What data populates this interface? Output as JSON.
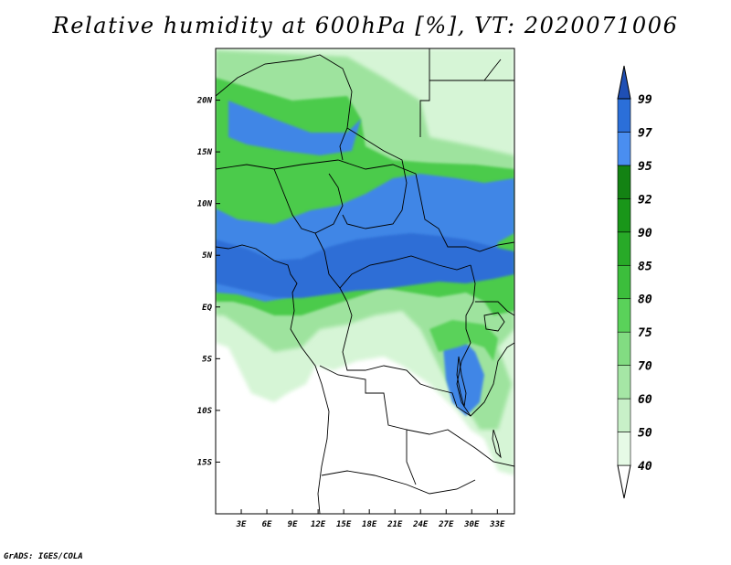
{
  "title": "Relative humidity at 600hPa [%], VT: 2020071006",
  "credit": "GrADS: IGES/COLA",
  "map": {
    "lon_range_deg": [
      0,
      35
    ],
    "lat_range_deg": [
      -20,
      25
    ],
    "lat_ticks": [
      {
        "value": 20,
        "label": "20N"
      },
      {
        "value": 15,
        "label": "15N"
      },
      {
        "value": 10,
        "label": "10N"
      },
      {
        "value": 5,
        "label": "5N"
      },
      {
        "value": 0,
        "label": "EQ"
      },
      {
        "value": -5,
        "label": "5S"
      },
      {
        "value": -10,
        "label": "10S"
      },
      {
        "value": -15,
        "label": "15S"
      }
    ],
    "lon_ticks": [
      {
        "value": 3,
        "label": "3E"
      },
      {
        "value": 6,
        "label": "6E"
      },
      {
        "value": 9,
        "label": "9E"
      },
      {
        "value": 12,
        "label": "12E"
      },
      {
        "value": 15,
        "label": "15E"
      },
      {
        "value": 18,
        "label": "18E"
      },
      {
        "value": 21,
        "label": "21E"
      },
      {
        "value": 24,
        "label": "24E"
      },
      {
        "value": 27,
        "label": "27E"
      },
      {
        "value": 30,
        "label": "30E"
      },
      {
        "value": 33,
        "label": "33E"
      }
    ]
  },
  "colorbar": {
    "levels": [
      "40",
      "50",
      "60",
      "70",
      "75",
      "80",
      "85",
      "90",
      "92",
      "95",
      "97",
      "99"
    ],
    "colors": [
      "#ffffff",
      "#e6fae6",
      "#c8f0c8",
      "#a5e6a5",
      "#82dc82",
      "#5ad25a",
      "#3cbe3c",
      "#28aa28",
      "#199619",
      "#138213",
      "#4a8ef0",
      "#2b6fd9",
      "#1f4fb4"
    ]
  }
}
